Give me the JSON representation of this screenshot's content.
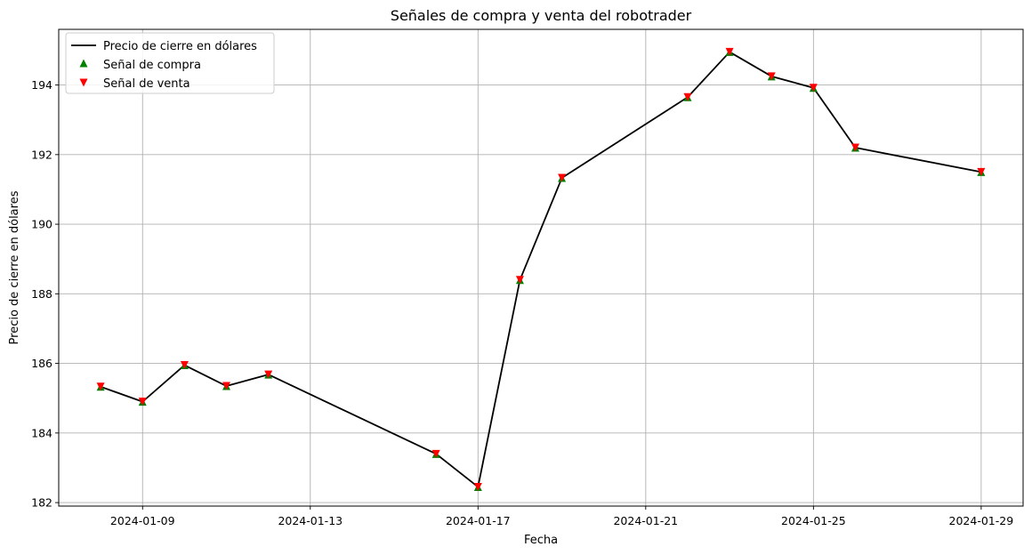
{
  "chart_data": {
    "type": "line",
    "title": "Señales de compra y venta del robotrader",
    "xlabel": "Fecha",
    "ylabel": "Precio de cierre en dólares",
    "x_type": "date",
    "x": [
      "2024-01-08",
      "2024-01-09",
      "2024-01-10",
      "2024-01-11",
      "2024-01-12",
      "2024-01-16",
      "2024-01-17",
      "2024-01-18",
      "2024-01-19",
      "2024-01-22",
      "2024-01-23",
      "2024-01-24",
      "2024-01-25",
      "2024-01-26",
      "2024-01-29"
    ],
    "series": [
      {
        "name": "Precio de cierre en dólares",
        "kind": "line",
        "color": "#000000",
        "values": [
          185.33,
          184.9,
          185.95,
          185.35,
          185.68,
          183.4,
          182.45,
          188.4,
          191.33,
          193.65,
          194.95,
          194.25,
          193.92,
          192.2,
          191.5
        ]
      },
      {
        "name": "Señal de compra",
        "kind": "marker",
        "marker": "triangle-up",
        "color": "#008000",
        "values": [
          185.33,
          184.9,
          185.95,
          185.35,
          185.68,
          183.4,
          182.45,
          188.4,
          191.33,
          193.65,
          194.95,
          194.25,
          193.92,
          192.2,
          191.5
        ]
      },
      {
        "name": "Señal de venta",
        "kind": "marker",
        "marker": "triangle-down",
        "color": "#ff0000",
        "values": [
          185.33,
          184.9,
          185.95,
          185.35,
          185.68,
          183.4,
          182.45,
          188.4,
          191.33,
          193.65,
          194.95,
          194.25,
          193.92,
          192.2,
          191.5
        ]
      }
    ],
    "xlim": [
      "2024-01-07",
      "2024-01-30"
    ],
    "ylim": [
      181.9,
      195.6
    ],
    "x_ticks": [
      "2024-01-09",
      "2024-01-13",
      "2024-01-17",
      "2024-01-21",
      "2024-01-25",
      "2024-01-29"
    ],
    "y_ticks": [
      "182",
      "184",
      "186",
      "188",
      "190",
      "192",
      "194"
    ],
    "grid": true,
    "legend_position": "top-left"
  }
}
